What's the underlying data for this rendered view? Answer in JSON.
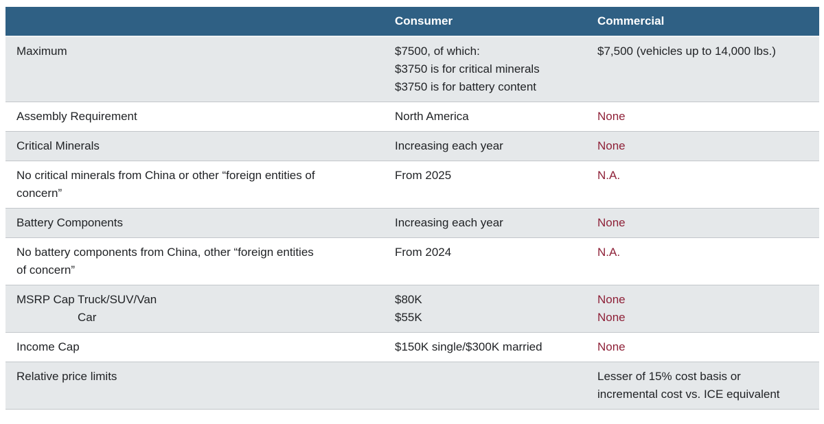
{
  "header": {
    "blank": "",
    "consumer": "Consumer",
    "commercial": "Commercial"
  },
  "rows": [
    {
      "label": "Maximum",
      "consumer": "$7500, of which:\n$3750 is for critical minerals\n$3750 is for battery content",
      "commercial": "$7,500 (vehicles up to 14,000 lbs.)"
    },
    {
      "label": "Assembly Requirement",
      "consumer": "North America",
      "commercial": "None"
    },
    {
      "label": "Critical Minerals",
      "consumer": "Increasing each year",
      "commercial": "None"
    },
    {
      "label": "No critical minerals from China or other “foreign entities of\nconcern”",
      "consumer": "From 2025",
      "commercial": "N.A."
    },
    {
      "label": "Battery Components",
      "consumer": "Increasing each year",
      "commercial": "None"
    },
    {
      "label": "No battery components from China, other “foreign entities\nof concern”",
      "consumer": "From 2024",
      "commercial": "N.A."
    },
    {
      "label": "MSRP Cap",
      "sublabel": "Truck/SUV/Van\nCar",
      "consumer": "$80K\n$55K",
      "commercial": "None\nNone"
    },
    {
      "label": "Income Cap",
      "consumer": "$150K single/$300K married",
      "commercial": "None"
    },
    {
      "label": "Relative price limits",
      "consumer": "",
      "commercial": "Lesser of 15% cost basis or\nincremental cost vs. ICE equivalent"
    }
  ],
  "colors": {
    "header_bg": "#2f6084",
    "header_text": "#ffffff",
    "row_alt_bg": "#e5e8ea",
    "row_bg": "#ffffff",
    "body_text": "#1f2124",
    "negative_text": "#8e2138",
    "row_border": "#c2c6ca"
  }
}
